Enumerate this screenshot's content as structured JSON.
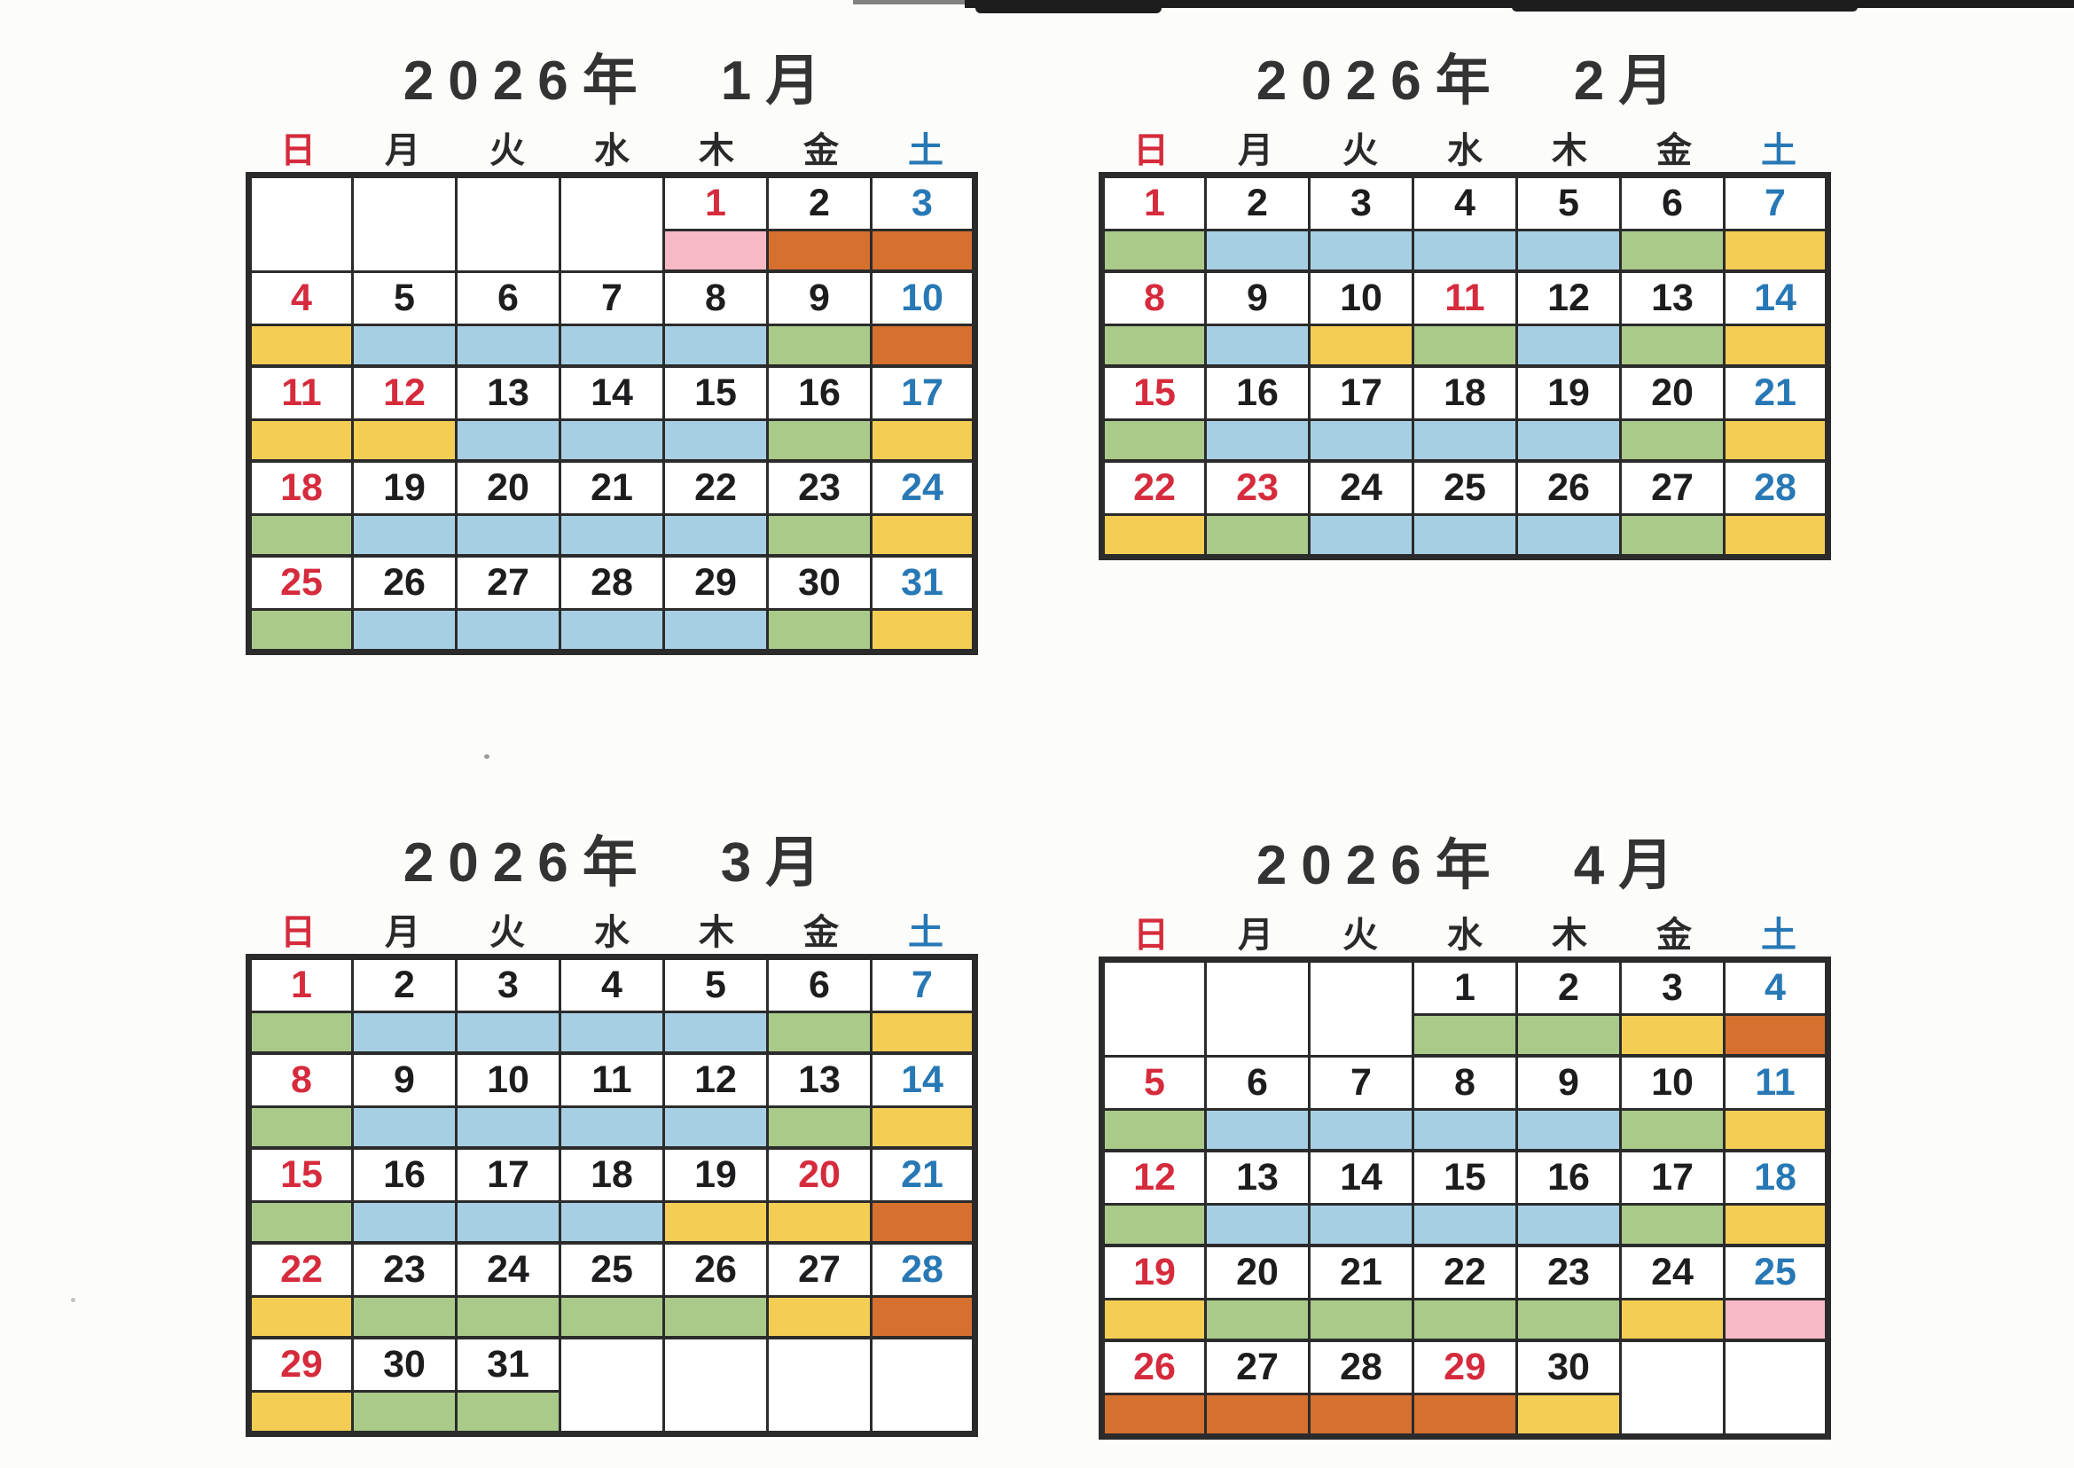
{
  "colors": {
    "red": "#d52b3c",
    "saturday_blue": "#2778b5",
    "number_black": "#1d1d1f",
    "weekday_black": "#2a2a2a",
    "title_gray": "#333333",
    "grid_border": "#2b2b2b",
    "band_blue": "#a7cfe4",
    "band_green": "#a9ca89",
    "band_yellow": "#f4cd55",
    "band_orange": "#d5702f",
    "band_pink": "#f7b9c5"
  },
  "weekdays": [
    {
      "label": "日",
      "color": "red"
    },
    {
      "label": "月",
      "color": "weekday_black"
    },
    {
      "label": "火",
      "color": "weekday_black"
    },
    {
      "label": "水",
      "color": "weekday_black"
    },
    {
      "label": "木",
      "color": "weekday_black"
    },
    {
      "label": "金",
      "color": "weekday_black"
    },
    {
      "label": "土",
      "color": "saturday_blue"
    }
  ],
  "months": [
    {
      "title": "2026年　1月",
      "weeks": [
        [
          null,
          null,
          null,
          null,
          {
            "day": "1",
            "num": "red",
            "band": "band_pink"
          },
          {
            "day": "2",
            "num": "black",
            "band": "band_orange"
          },
          {
            "day": "3",
            "num": "blue",
            "band": "band_orange"
          }
        ],
        [
          {
            "day": "4",
            "num": "red",
            "band": "band_yellow"
          },
          {
            "day": "5",
            "num": "black",
            "band": "band_blue"
          },
          {
            "day": "6",
            "num": "black",
            "band": "band_blue"
          },
          {
            "day": "7",
            "num": "black",
            "band": "band_blue"
          },
          {
            "day": "8",
            "num": "black",
            "band": "band_blue"
          },
          {
            "day": "9",
            "num": "black",
            "band": "band_green"
          },
          {
            "day": "10",
            "num": "blue",
            "band": "band_orange"
          }
        ],
        [
          {
            "day": "11",
            "num": "red",
            "band": "band_yellow"
          },
          {
            "day": "12",
            "num": "red",
            "band": "band_yellow"
          },
          {
            "day": "13",
            "num": "black",
            "band": "band_blue"
          },
          {
            "day": "14",
            "num": "black",
            "band": "band_blue"
          },
          {
            "day": "15",
            "num": "black",
            "band": "band_blue"
          },
          {
            "day": "16",
            "num": "black",
            "band": "band_green"
          },
          {
            "day": "17",
            "num": "blue",
            "band": "band_yellow"
          }
        ],
        [
          {
            "day": "18",
            "num": "red",
            "band": "band_green"
          },
          {
            "day": "19",
            "num": "black",
            "band": "band_blue"
          },
          {
            "day": "20",
            "num": "black",
            "band": "band_blue"
          },
          {
            "day": "21",
            "num": "black",
            "band": "band_blue"
          },
          {
            "day": "22",
            "num": "black",
            "band": "band_blue"
          },
          {
            "day": "23",
            "num": "black",
            "band": "band_green"
          },
          {
            "day": "24",
            "num": "blue",
            "band": "band_yellow"
          }
        ],
        [
          {
            "day": "25",
            "num": "red",
            "band": "band_green"
          },
          {
            "day": "26",
            "num": "black",
            "band": "band_blue"
          },
          {
            "day": "27",
            "num": "black",
            "band": "band_blue"
          },
          {
            "day": "28",
            "num": "black",
            "band": "band_blue"
          },
          {
            "day": "29",
            "num": "black",
            "band": "band_blue"
          },
          {
            "day": "30",
            "num": "black",
            "band": "band_green"
          },
          {
            "day": "31",
            "num": "blue",
            "band": "band_yellow"
          }
        ]
      ]
    },
    {
      "title": "2026年　2月",
      "weeks": [
        [
          {
            "day": "1",
            "num": "red",
            "band": "band_green"
          },
          {
            "day": "2",
            "num": "black",
            "band": "band_blue"
          },
          {
            "day": "3",
            "num": "black",
            "band": "band_blue"
          },
          {
            "day": "4",
            "num": "black",
            "band": "band_blue"
          },
          {
            "day": "5",
            "num": "black",
            "band": "band_blue"
          },
          {
            "day": "6",
            "num": "black",
            "band": "band_green"
          },
          {
            "day": "7",
            "num": "blue",
            "band": "band_yellow"
          }
        ],
        [
          {
            "day": "8",
            "num": "red",
            "band": "band_green"
          },
          {
            "day": "9",
            "num": "black",
            "band": "band_blue"
          },
          {
            "day": "10",
            "num": "black",
            "band": "band_yellow"
          },
          {
            "day": "11",
            "num": "red",
            "band": "band_green"
          },
          {
            "day": "12",
            "num": "black",
            "band": "band_blue"
          },
          {
            "day": "13",
            "num": "black",
            "band": "band_green"
          },
          {
            "day": "14",
            "num": "blue",
            "band": "band_yellow"
          }
        ],
        [
          {
            "day": "15",
            "num": "red",
            "band": "band_green"
          },
          {
            "day": "16",
            "num": "black",
            "band": "band_blue"
          },
          {
            "day": "17",
            "num": "black",
            "band": "band_blue"
          },
          {
            "day": "18",
            "num": "black",
            "band": "band_blue"
          },
          {
            "day": "19",
            "num": "black",
            "band": "band_blue"
          },
          {
            "day": "20",
            "num": "black",
            "band": "band_green"
          },
          {
            "day": "21",
            "num": "blue",
            "band": "band_yellow"
          }
        ],
        [
          {
            "day": "22",
            "num": "red",
            "band": "band_yellow"
          },
          {
            "day": "23",
            "num": "red",
            "band": "band_green"
          },
          {
            "day": "24",
            "num": "black",
            "band": "band_blue"
          },
          {
            "day": "25",
            "num": "black",
            "band": "band_blue"
          },
          {
            "day": "26",
            "num": "black",
            "band": "band_blue"
          },
          {
            "day": "27",
            "num": "black",
            "band": "band_green"
          },
          {
            "day": "28",
            "num": "blue",
            "band": "band_yellow"
          }
        ]
      ]
    },
    {
      "title": "2026年　3月",
      "weeks": [
        [
          {
            "day": "1",
            "num": "red",
            "band": "band_green"
          },
          {
            "day": "2",
            "num": "black",
            "band": "band_blue"
          },
          {
            "day": "3",
            "num": "black",
            "band": "band_blue"
          },
          {
            "day": "4",
            "num": "black",
            "band": "band_blue"
          },
          {
            "day": "5",
            "num": "black",
            "band": "band_blue"
          },
          {
            "day": "6",
            "num": "black",
            "band": "band_green"
          },
          {
            "day": "7",
            "num": "blue",
            "band": "band_yellow"
          }
        ],
        [
          {
            "day": "8",
            "num": "red",
            "band": "band_green"
          },
          {
            "day": "9",
            "num": "black",
            "band": "band_blue"
          },
          {
            "day": "10",
            "num": "black",
            "band": "band_blue"
          },
          {
            "day": "11",
            "num": "black",
            "band": "band_blue"
          },
          {
            "day": "12",
            "num": "black",
            "band": "band_blue"
          },
          {
            "day": "13",
            "num": "black",
            "band": "band_green"
          },
          {
            "day": "14",
            "num": "blue",
            "band": "band_yellow"
          }
        ],
        [
          {
            "day": "15",
            "num": "red",
            "band": "band_green"
          },
          {
            "day": "16",
            "num": "black",
            "band": "band_blue"
          },
          {
            "day": "17",
            "num": "black",
            "band": "band_blue"
          },
          {
            "day": "18",
            "num": "black",
            "band": "band_blue"
          },
          {
            "day": "19",
            "num": "black",
            "band": "band_yellow"
          },
          {
            "day": "20",
            "num": "red",
            "band": "band_yellow"
          },
          {
            "day": "21",
            "num": "blue",
            "band": "band_orange"
          }
        ],
        [
          {
            "day": "22",
            "num": "red",
            "band": "band_yellow"
          },
          {
            "day": "23",
            "num": "black",
            "band": "band_green"
          },
          {
            "day": "24",
            "num": "black",
            "band": "band_green"
          },
          {
            "day": "25",
            "num": "black",
            "band": "band_green"
          },
          {
            "day": "26",
            "num": "black",
            "band": "band_green"
          },
          {
            "day": "27",
            "num": "black",
            "band": "band_yellow"
          },
          {
            "day": "28",
            "num": "blue",
            "band": "band_orange"
          }
        ],
        [
          {
            "day": "29",
            "num": "red",
            "band": "band_yellow"
          },
          {
            "day": "30",
            "num": "black",
            "band": "band_green"
          },
          {
            "day": "31",
            "num": "black",
            "band": "band_green"
          },
          null,
          null,
          null,
          null
        ]
      ]
    },
    {
      "title": "2026年　4月",
      "weeks": [
        [
          null,
          null,
          null,
          {
            "day": "1",
            "num": "black",
            "band": "band_green"
          },
          {
            "day": "2",
            "num": "black",
            "band": "band_green"
          },
          {
            "day": "3",
            "num": "black",
            "band": "band_yellow"
          },
          {
            "day": "4",
            "num": "blue",
            "band": "band_orange"
          }
        ],
        [
          {
            "day": "5",
            "num": "red",
            "band": "band_green"
          },
          {
            "day": "6",
            "num": "black",
            "band": "band_blue"
          },
          {
            "day": "7",
            "num": "black",
            "band": "band_blue"
          },
          {
            "day": "8",
            "num": "black",
            "band": "band_blue"
          },
          {
            "day": "9",
            "num": "black",
            "band": "band_blue"
          },
          {
            "day": "10",
            "num": "black",
            "band": "band_green"
          },
          {
            "day": "11",
            "num": "blue",
            "band": "band_yellow"
          }
        ],
        [
          {
            "day": "12",
            "num": "red",
            "band": "band_green"
          },
          {
            "day": "13",
            "num": "black",
            "band": "band_blue"
          },
          {
            "day": "14",
            "num": "black",
            "band": "band_blue"
          },
          {
            "day": "15",
            "num": "black",
            "band": "band_blue"
          },
          {
            "day": "16",
            "num": "black",
            "band": "band_blue"
          },
          {
            "day": "17",
            "num": "black",
            "band": "band_green"
          },
          {
            "day": "18",
            "num": "blue",
            "band": "band_yellow"
          }
        ],
        [
          {
            "day": "19",
            "num": "red",
            "band": "band_yellow"
          },
          {
            "day": "20",
            "num": "black",
            "band": "band_green"
          },
          {
            "day": "21",
            "num": "black",
            "band": "band_green"
          },
          {
            "day": "22",
            "num": "black",
            "band": "band_green"
          },
          {
            "day": "23",
            "num": "black",
            "band": "band_green"
          },
          {
            "day": "24",
            "num": "black",
            "band": "band_yellow"
          },
          {
            "day": "25",
            "num": "blue",
            "band": "band_pink"
          }
        ],
        [
          {
            "day": "26",
            "num": "red",
            "band": "band_orange"
          },
          {
            "day": "27",
            "num": "black",
            "band": "band_orange"
          },
          {
            "day": "28",
            "num": "black",
            "band": "band_orange"
          },
          {
            "day": "29",
            "num": "red",
            "band": "band_orange"
          },
          {
            "day": "30",
            "num": "black",
            "band": "band_yellow"
          },
          null,
          null
        ]
      ]
    }
  ]
}
